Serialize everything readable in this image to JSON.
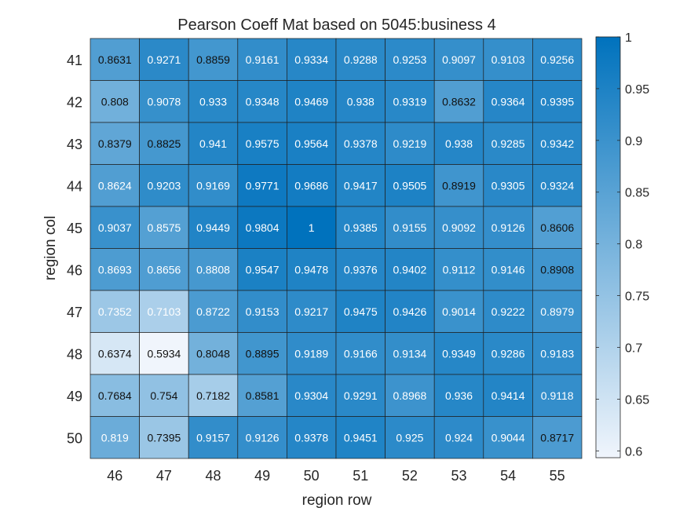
{
  "chart_data": {
    "type": "heatmap",
    "title": "Pearson Coeff Mat based on 5045:business 4",
    "xlabel": "region row",
    "ylabel": "region col",
    "x_categories": [
      "46",
      "47",
      "48",
      "49",
      "50",
      "51",
      "52",
      "53",
      "54",
      "55"
    ],
    "y_categories": [
      "41",
      "42",
      "43",
      "44",
      "45",
      "46",
      "47",
      "48",
      "49",
      "50"
    ],
    "cell_labels": [
      [
        "0.8631",
        "0.9271",
        "0.8859",
        "0.9161",
        "0.9334",
        "0.9288",
        "0.9253",
        "0.9097",
        "0.9103",
        "0.9256"
      ],
      [
        "0.808",
        "0.9078",
        "0.933",
        "0.9348",
        "0.9469",
        "0.938",
        "0.9319",
        "0.8632",
        "0.9364",
        "0.9395"
      ],
      [
        "0.8379",
        "0.8825",
        "0.941",
        "0.9575",
        "0.9564",
        "0.9378",
        "0.9219",
        "0.938",
        "0.9285",
        "0.9342"
      ],
      [
        "0.8624",
        "0.9203",
        "0.9169",
        "0.9771",
        "0.9686",
        "0.9417",
        "0.9505",
        "0.8919",
        "0.9305",
        "0.9324"
      ],
      [
        "0.9037",
        "0.8575",
        "0.9449",
        "0.9804",
        "1",
        "0.9385",
        "0.9155",
        "0.9092",
        "0.9126",
        "0.8606"
      ],
      [
        "0.8693",
        "0.8656",
        "0.8808",
        "0.9547",
        "0.9478",
        "0.9376",
        "0.9402",
        "0.9112",
        "0.9146",
        "0.8908"
      ],
      [
        "0.7352",
        "0.7103",
        "0.8722",
        "0.9153",
        "0.9217",
        "0.9475",
        "0.9426",
        "0.9014",
        "0.9222",
        "0.8979"
      ],
      [
        "0.6374",
        "0.5934",
        "0.8048",
        "0.8895",
        "0.9189",
        "0.9166",
        "0.9134",
        "0.9349",
        "0.9286",
        "0.9183"
      ],
      [
        "0.7684",
        "0.754",
        "0.7182",
        "0.8581",
        "0.9304",
        "0.9291",
        "0.8968",
        "0.936",
        "0.9414",
        "0.9118"
      ],
      [
        "0.819",
        "0.7395",
        "0.9157",
        "0.9126",
        "0.9378",
        "0.9451",
        "0.925",
        "0.924",
        "0.9044",
        "0.8717"
      ]
    ],
    "colorbar": {
      "limits": [
        0.5934,
        1
      ],
      "ticks": [
        0.6,
        0.65,
        0.7,
        0.75,
        0.8,
        0.85,
        0.9,
        0.95,
        1
      ],
      "tick_labels": [
        "0.6",
        "0.65",
        "0.7",
        "0.75",
        "0.8",
        "0.85",
        "0.9",
        "0.95",
        "1"
      ],
      "color_low": "#f0f5fc",
      "color_high": "#0072bd"
    },
    "dark_text_rule": "values below about 0.92 are labeled in black, higher values in white (highlighted cells differ)",
    "black_text_cells": [
      [
        0,
        0
      ],
      [
        0,
        2
      ],
      [
        1,
        7
      ],
      [
        2,
        0
      ],
      [
        2,
        1
      ],
      [
        3,
        7
      ],
      [
        5,
        9
      ],
      [
        7,
        0
      ],
      [
        7,
        1
      ],
      [
        7,
        2
      ],
      [
        7,
        3
      ],
      [
        8,
        0
      ],
      [
        8,
        1
      ],
      [
        8,
        2
      ],
      [
        8,
        3
      ],
      [
        9,
        1
      ],
      [
        9,
        9
      ],
      [
        4,
        9
      ],
      [
        1,
        0
      ]
    ],
    "grid": false
  }
}
